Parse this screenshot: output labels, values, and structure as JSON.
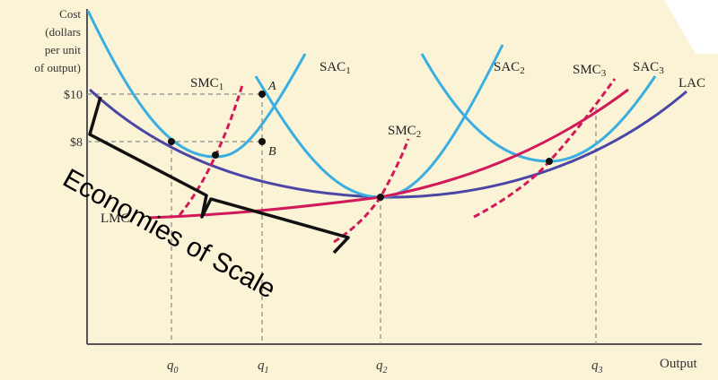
{
  "axes": {
    "y_title": [
      "Cost",
      "(dollars",
      "per unit",
      "of output)"
    ],
    "x_title": "Output",
    "y_ticks": [
      "$10",
      "$8"
    ],
    "x_ticks": [
      {
        "base": "q",
        "sub": "0"
      },
      {
        "base": "q",
        "sub": "1"
      },
      {
        "base": "q",
        "sub": "2"
      },
      {
        "base": "q",
        "sub": "3"
      }
    ]
  },
  "curve_labels": {
    "sac1": {
      "base": "SAC",
      "sub": "1"
    },
    "sac2": {
      "base": "SAC",
      "sub": "2"
    },
    "sac3": {
      "base": "SAC",
      "sub": "3"
    },
    "smc1": {
      "base": "SMC",
      "sub": "1"
    },
    "smc2": {
      "base": "SMC",
      "sub": "2"
    },
    "smc3": {
      "base": "SMC",
      "sub": "3"
    },
    "lac": "LAC",
    "lmc": "LMC"
  },
  "points": {
    "a": "A",
    "b": "B"
  },
  "annotation": "Economies of Scale",
  "colors": {
    "background": "#fbf3d6",
    "sac": "#3aaee0",
    "sac_light": "#6fc6ea",
    "lac": "#4b46a6",
    "marginal": "#d2195a",
    "axis": "#555555",
    "guide": "#888888"
  }
}
